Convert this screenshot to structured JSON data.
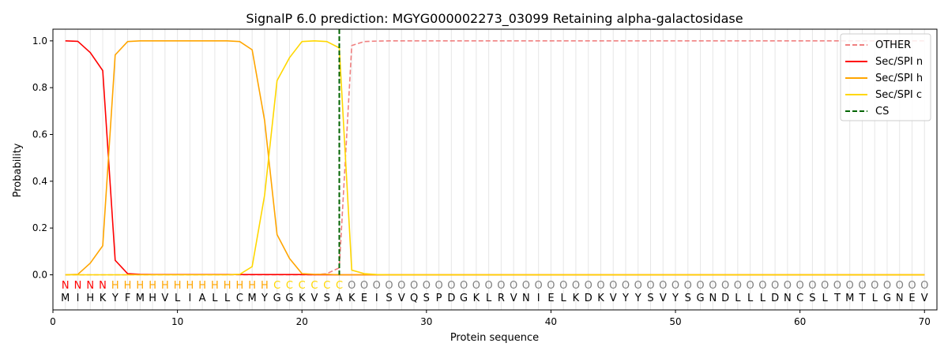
{
  "chart_data": {
    "type": "line",
    "title": "SignalP 6.0 prediction: MGYG000002273_03099 Retaining alpha-galactosidase",
    "xlabel": "Protein sequence",
    "ylabel": "Probability",
    "xlim": [
      0,
      71
    ],
    "ylim": [
      -0.15,
      1.05
    ],
    "x_ticks": [
      0,
      10,
      20,
      30,
      40,
      50,
      60,
      70
    ],
    "y_ticks": [
      0.0,
      0.2,
      0.4,
      0.6,
      0.8,
      1.0
    ],
    "grid": "vertical lines at each residue position",
    "legend_position": "top-right",
    "sequence": "MIHKYFMHVLIALLCMYGGKVSAKEISVQSPDGKLRVNIELKDKVYYSVYSGNDLLLDNCSLTMTLGNEV",
    "labels": "NNNNHHHHHHHHHHHHHCCCCCCOOOOOOOOOOOOOOOOOOOOOOOOOOOOOOOOOOOOOOOOOOOOOOO",
    "label_colors": {
      "N": "#ff0000",
      "H": "#ffa500",
      "C": "#ffd700",
      "O": "#808080"
    },
    "cleavage_site": 23,
    "series": [
      {
        "name": "OTHER",
        "color": "#f08080",
        "style": "dashed",
        "values": [
          0.0,
          0.0,
          0.0,
          0.0,
          0.0,
          0.0,
          0.0,
          0.0,
          0.0,
          0.0,
          0.0,
          0.0,
          0.0,
          0.0,
          0.0,
          0.0,
          0.0,
          0.0,
          0.0,
          0.0,
          0.0,
          0.005,
          0.03,
          0.98,
          0.997,
          0.999,
          1.0,
          1.0,
          1.0,
          1.0,
          1.0,
          1.0,
          1.0,
          1.0,
          1.0,
          1.0,
          1.0,
          1.0,
          1.0,
          1.0,
          1.0,
          1.0,
          1.0,
          1.0,
          1.0,
          1.0,
          1.0,
          1.0,
          1.0,
          1.0,
          1.0,
          1.0,
          1.0,
          1.0,
          1.0,
          1.0,
          1.0,
          1.0,
          1.0,
          1.0,
          1.0,
          1.0,
          1.0,
          1.0,
          1.0,
          1.0,
          1.0,
          1.0,
          1.0,
          1.0
        ]
      },
      {
        "name": "Sec/SPI n",
        "color": "#ff0000",
        "style": "solid",
        "values": [
          1.0,
          0.998,
          0.95,
          0.873,
          0.062,
          0.005,
          0.002,
          0.001,
          0.001,
          0.001,
          0.001,
          0.001,
          0.001,
          0.001,
          0.001,
          0.001,
          0.001,
          0.001,
          0.001,
          0.001,
          0.0,
          0.0,
          0.0,
          0.0,
          0.0,
          0.0,
          0.0,
          0.0,
          0.0,
          0.0,
          0.0,
          0.0,
          0.0,
          0.0,
          0.0,
          0.0,
          0.0,
          0.0,
          0.0,
          0.0,
          0.0,
          0.0,
          0.0,
          0.0,
          0.0,
          0.0,
          0.0,
          0.0,
          0.0,
          0.0,
          0.0,
          0.0,
          0.0,
          0.0,
          0.0,
          0.0,
          0.0,
          0.0,
          0.0,
          0.0,
          0.0,
          0.0,
          0.0,
          0.0,
          0.0,
          0.0,
          0.0,
          0.0,
          0.0,
          0.0
        ]
      },
      {
        "name": "Sec/SPI h",
        "color": "#ffa500",
        "style": "solid",
        "values": [
          0.0,
          0.002,
          0.05,
          0.124,
          0.94,
          0.997,
          1.0,
          1.0,
          1.0,
          1.0,
          1.0,
          1.0,
          1.0,
          1.0,
          0.997,
          0.962,
          0.66,
          0.172,
          0.07,
          0.005,
          0.002,
          0.002,
          0.0,
          0.0,
          0.0,
          0.0,
          0.0,
          0.0,
          0.0,
          0.0,
          0.0,
          0.0,
          0.0,
          0.0,
          0.0,
          0.0,
          0.0,
          0.0,
          0.0,
          0.0,
          0.0,
          0.0,
          0.0,
          0.0,
          0.0,
          0.0,
          0.0,
          0.0,
          0.0,
          0.0,
          0.0,
          0.0,
          0.0,
          0.0,
          0.0,
          0.0,
          0.0,
          0.0,
          0.0,
          0.0,
          0.0,
          0.0,
          0.0,
          0.0,
          0.0,
          0.0,
          0.0,
          0.0,
          0.0,
          0.0
        ]
      },
      {
        "name": "Sec/SPI c",
        "color": "#ffd700",
        "style": "solid",
        "values": [
          0.0,
          0.0,
          0.0,
          0.0,
          0.0,
          0.0,
          0.0,
          0.0,
          0.0,
          0.0,
          0.0,
          0.0,
          0.0,
          0.0,
          0.002,
          0.035,
          0.34,
          0.83,
          0.928,
          0.997,
          1.0,
          0.997,
          0.97,
          0.02,
          0.005,
          0.001,
          0.0,
          0.0,
          0.0,
          0.0,
          0.0,
          0.0,
          0.0,
          0.0,
          0.0,
          0.0,
          0.0,
          0.0,
          0.0,
          0.0,
          0.0,
          0.0,
          0.0,
          0.0,
          0.0,
          0.0,
          0.0,
          0.0,
          0.0,
          0.0,
          0.0,
          0.0,
          0.0,
          0.0,
          0.0,
          0.0,
          0.0,
          0.0,
          0.0,
          0.0,
          0.0,
          0.0,
          0.0,
          0.0,
          0.0,
          0.0,
          0.0,
          0.0,
          0.0,
          0.0
        ]
      }
    ],
    "cs_series": {
      "name": "CS",
      "color": "#006400",
      "style": "dashed"
    }
  }
}
